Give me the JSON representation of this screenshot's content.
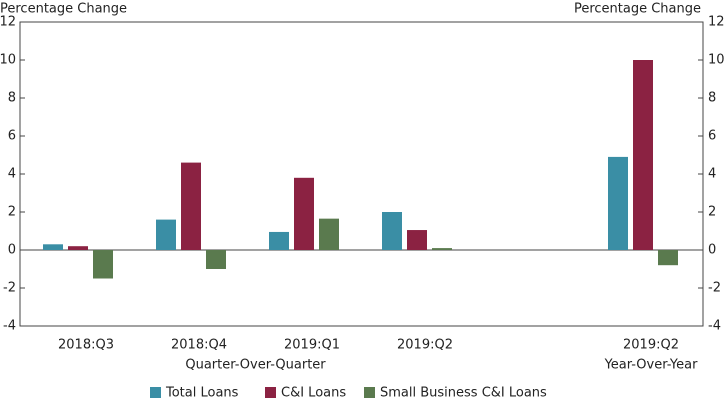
{
  "chart_data": {
    "type": "bar",
    "y_label": "Percentage Change",
    "y2_label": "Percentage Change",
    "categories": [
      "2018:Q3",
      "2018:Q4",
      "2019:Q1",
      "2019:Q2",
      null,
      "2019:Q2"
    ],
    "annotations": [
      "Quarter-Over-Quarter",
      "Year-Over-Year"
    ],
    "series": [
      {
        "name": "Total Loans",
        "color": "#3a8ea5",
        "values": [
          0.3,
          1.6,
          0.95,
          2.0,
          null,
          4.9
        ]
      },
      {
        "name": "C&I Loans",
        "color": "#8b2242",
        "values": [
          0.2,
          4.6,
          3.8,
          1.05,
          null,
          10.0
        ]
      },
      {
        "name": "Small Business C&I Loans",
        "color": "#5a7a4e",
        "values": [
          -1.5,
          -1.0,
          1.65,
          0.1,
          null,
          -0.8
        ]
      }
    ],
    "ylim": [
      -4,
      12
    ],
    "yticks": [
      -4,
      -2,
      0,
      2,
      4,
      6,
      8,
      10,
      12
    ],
    "y2lim": [
      -4,
      12
    ],
    "y2ticks": [
      -4,
      -2,
      0,
      2,
      4,
      6,
      8,
      10,
      12
    ],
    "legend": "bottom"
  }
}
